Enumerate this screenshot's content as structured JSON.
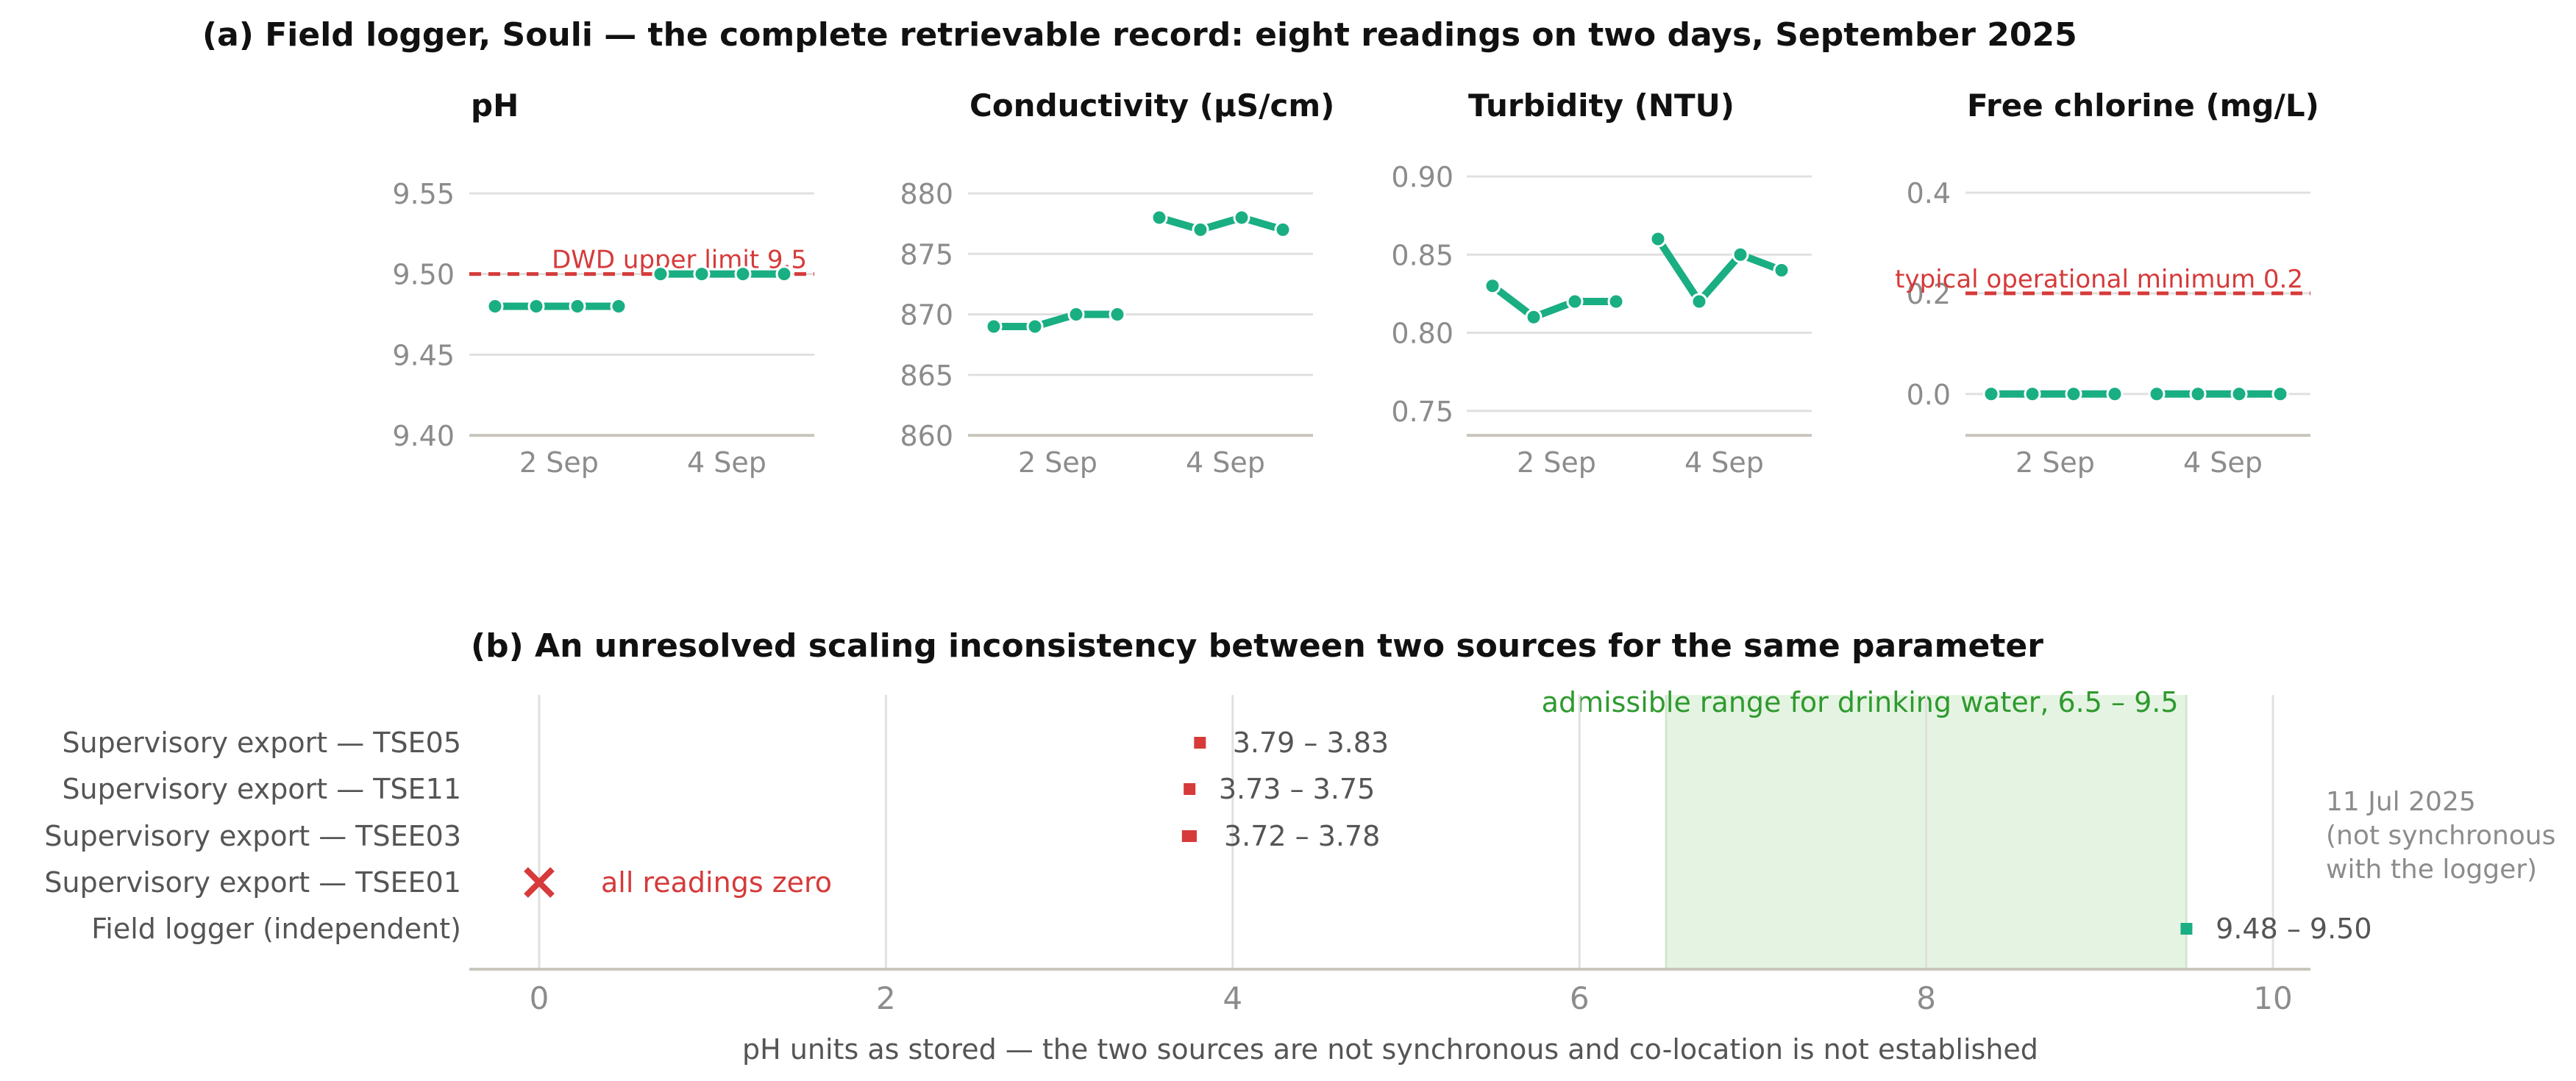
{
  "panel_a": {
    "title": "(a)  Field logger, Souli — the complete retrievable record: eight readings on two days, September 2025"
  },
  "panel_b": {
    "title": "(b)  An unresolved scaling inconsistency between two sources for the same parameter"
  },
  "colors": {
    "series": "#1aae83",
    "limit": "#d63a3a",
    "band_fill": "#e5f4e2",
    "band_text": "#2e9a2e",
    "grid": "#e0e0e0",
    "axis": "#c9c6be",
    "tick_text": "#8c8c8c",
    "row_text": "#555555"
  },
  "chart_data": [
    {
      "type": "line",
      "title": "pH",
      "x_ticks": [
        "2 Sep",
        "4 Sep"
      ],
      "ylim": [
        9.4,
        9.55
      ],
      "y_ticks": [
        "9.40",
        "9.45",
        "9.50",
        "9.55"
      ],
      "series": [
        {
          "values": [
            9.48,
            9.48,
            9.48,
            9.48
          ]
        },
        {
          "values": [
            9.5,
            9.5,
            9.5,
            9.5
          ]
        }
      ],
      "reference_line": {
        "value": 9.5,
        "label": "DWD upper limit 9.5"
      }
    },
    {
      "type": "line",
      "title": "Conductivity  (µS/cm)",
      "x_ticks": [
        "2 Sep",
        "4 Sep"
      ],
      "ylim": [
        860,
        880
      ],
      "y_ticks": [
        "860",
        "865",
        "870",
        "875",
        "880"
      ],
      "series": [
        {
          "values": [
            869,
            869,
            870,
            870
          ]
        },
        {
          "values": [
            878,
            877,
            878,
            877
          ]
        }
      ]
    },
    {
      "type": "line",
      "title": "Turbidity  (NTU)",
      "x_ticks": [
        "2 Sep",
        "4 Sep"
      ],
      "ylim": [
        0.74,
        0.9
      ],
      "y_ticks": [
        "0.75",
        "0.80",
        "0.85",
        "0.90"
      ],
      "series": [
        {
          "values": [
            0.83,
            0.81,
            0.82,
            0.82
          ]
        },
        {
          "values": [
            0.86,
            0.82,
            0.85,
            0.84
          ]
        }
      ]
    },
    {
      "type": "line",
      "title": "Free chlorine  (mg/L)",
      "x_ticks": [
        "2 Sep",
        "4 Sep"
      ],
      "ylim": [
        -0.05,
        0.4
      ],
      "y_ticks": [
        "0.0",
        "0.2",
        "0.4"
      ],
      "series": [
        {
          "values": [
            0.0,
            0.0,
            0.0,
            0.0
          ]
        },
        {
          "values": [
            0.0,
            0.0,
            0.0,
            0.0
          ]
        }
      ],
      "reference_line": {
        "value": 0.2,
        "label": "typical operational minimum 0.2"
      }
    },
    {
      "type": "range",
      "xlabel": "pH units as stored — the two sources are not synchronous and co-location is not established",
      "xlim": [
        0,
        10
      ],
      "x_ticks": [
        "0",
        "2",
        "4",
        "6",
        "8",
        "10"
      ],
      "band": {
        "from": 6.5,
        "to": 9.5,
        "label": "admissible range for drinking water, 6.5 – 9.5"
      },
      "rows": [
        {
          "label": "Supervisory export — TSE05",
          "min": 3.79,
          "max": 3.83,
          "value_label": "3.79 – 3.83",
          "color": "#d63a3a"
        },
        {
          "label": "Supervisory export — TSE11",
          "min": 3.73,
          "max": 3.75,
          "value_label": "3.73 – 3.75",
          "color": "#d63a3a"
        },
        {
          "label": "Supervisory export — TSEE03",
          "min": 3.72,
          "max": 3.78,
          "value_label": "3.72 – 3.78",
          "color": "#d63a3a"
        },
        {
          "label": "Supervisory export — TSEE01",
          "min": 0,
          "max": 0,
          "value_label": "all readings zero",
          "color": "#d63a3a",
          "marker": "cross"
        },
        {
          "label": "Field logger (independent)",
          "min": 9.48,
          "max": 9.5,
          "value_label": "9.48 – 9.50",
          "color": "#1aae83"
        }
      ],
      "side_note": [
        "11 Jul 2025",
        "(not synchronous",
        "with the logger)"
      ]
    }
  ]
}
